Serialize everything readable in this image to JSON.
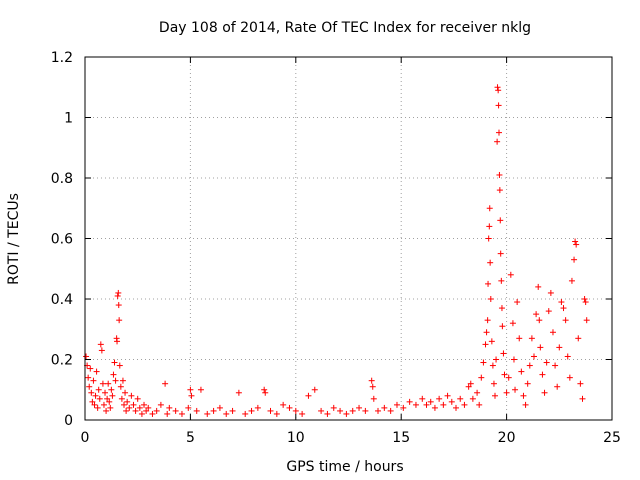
{
  "chart_data": {
    "type": "scatter",
    "title": "Day 108 of 2014, Rate Of TEC Index for receiver nklg",
    "xlabel": "GPS time / hours",
    "ylabel": "ROTI / TECUs",
    "xlim": [
      0,
      25
    ],
    "ylim": [
      0,
      1.2
    ],
    "xticks": [
      0,
      5,
      10,
      15,
      20,
      25
    ],
    "xtick_labels": [
      "0",
      "5",
      "10",
      "15",
      "20",
      "25"
    ],
    "yticks": [
      0,
      0.2,
      0.4,
      0.6,
      0.8,
      1.0,
      1.2
    ],
    "ytick_labels": [
      "0",
      "0.2",
      "0.4",
      "0.6",
      "0.8",
      "1",
      "1.2"
    ],
    "grid": true,
    "marker": "+",
    "color": "#ff0000",
    "series": [
      {
        "points": [
          [
            0.05,
            0.21
          ],
          [
            0.1,
            0.18
          ],
          [
            0.15,
            0.14
          ],
          [
            0.2,
            0.11
          ],
          [
            0.25,
            0.17
          ],
          [
            0.3,
            0.09
          ],
          [
            0.35,
            0.06
          ],
          [
            0.4,
            0.13
          ],
          [
            0.45,
            0.05
          ],
          [
            0.5,
            0.08
          ],
          [
            0.55,
            0.16
          ],
          [
            0.6,
            0.04
          ],
          [
            0.65,
            0.1
          ],
          [
            0.7,
            0.07
          ],
          [
            0.75,
            0.25
          ],
          [
            0.8,
            0.23
          ],
          [
            0.85,
            0.12
          ],
          [
            0.9,
            0.05
          ],
          [
            0.95,
            0.09
          ],
          [
            1.0,
            0.03
          ],
          [
            1.05,
            0.07
          ],
          [
            1.1,
            0.12
          ],
          [
            1.15,
            0.06
          ],
          [
            1.2,
            0.04
          ],
          [
            1.25,
            0.1
          ],
          [
            1.3,
            0.08
          ],
          [
            1.35,
            0.15
          ],
          [
            1.4,
            0.19
          ],
          [
            1.45,
            0.13
          ],
          [
            1.5,
            0.27
          ],
          [
            1.52,
            0.26
          ],
          [
            1.55,
            0.41
          ],
          [
            1.58,
            0.42
          ],
          [
            1.6,
            0.38
          ],
          [
            1.62,
            0.33
          ],
          [
            1.65,
            0.18
          ],
          [
            1.7,
            0.11
          ],
          [
            1.75,
            0.07
          ],
          [
            1.8,
            0.13
          ],
          [
            1.85,
            0.05
          ],
          [
            1.9,
            0.09
          ],
          [
            1.95,
            0.03
          ],
          [
            2.0,
            0.06
          ],
          [
            2.1,
            0.04
          ],
          [
            2.2,
            0.08
          ],
          [
            2.3,
            0.05
          ],
          [
            2.4,
            0.03
          ],
          [
            2.5,
            0.07
          ],
          [
            2.6,
            0.04
          ],
          [
            2.7,
            0.02
          ],
          [
            2.8,
            0.05
          ],
          [
            2.9,
            0.03
          ],
          [
            3.0,
            0.04
          ],
          [
            3.2,
            0.02
          ],
          [
            3.4,
            0.03
          ],
          [
            3.6,
            0.05
          ],
          [
            3.8,
            0.12
          ],
          [
            3.9,
            0.02
          ],
          [
            4.0,
            0.04
          ],
          [
            4.3,
            0.03
          ],
          [
            4.6,
            0.02
          ],
          [
            4.9,
            0.04
          ],
          [
            5.0,
            0.1
          ],
          [
            5.05,
            0.08
          ],
          [
            5.3,
            0.03
          ],
          [
            5.5,
            0.1
          ],
          [
            5.8,
            0.02
          ],
          [
            6.1,
            0.03
          ],
          [
            6.4,
            0.04
          ],
          [
            6.7,
            0.02
          ],
          [
            7.0,
            0.03
          ],
          [
            7.3,
            0.09
          ],
          [
            7.6,
            0.02
          ],
          [
            7.9,
            0.03
          ],
          [
            8.2,
            0.04
          ],
          [
            8.5,
            0.1
          ],
          [
            8.55,
            0.09
          ],
          [
            8.8,
            0.03
          ],
          [
            9.1,
            0.02
          ],
          [
            9.4,
            0.05
          ],
          [
            9.7,
            0.04
          ],
          [
            10.0,
            0.03
          ],
          [
            10.3,
            0.02
          ],
          [
            10.6,
            0.08
          ],
          [
            10.9,
            0.1
          ],
          [
            11.2,
            0.03
          ],
          [
            11.5,
            0.02
          ],
          [
            11.8,
            0.04
          ],
          [
            12.1,
            0.03
          ],
          [
            12.4,
            0.02
          ],
          [
            12.7,
            0.03
          ],
          [
            13.0,
            0.04
          ],
          [
            13.3,
            0.03
          ],
          [
            13.6,
            0.13
          ],
          [
            13.65,
            0.11
          ],
          [
            13.7,
            0.07
          ],
          [
            13.9,
            0.03
          ],
          [
            14.2,
            0.04
          ],
          [
            14.5,
            0.03
          ],
          [
            14.8,
            0.05
          ],
          [
            15.1,
            0.04
          ],
          [
            15.4,
            0.06
          ],
          [
            15.7,
            0.05
          ],
          [
            16.0,
            0.07
          ],
          [
            16.2,
            0.05
          ],
          [
            16.4,
            0.06
          ],
          [
            16.6,
            0.04
          ],
          [
            16.8,
            0.07
          ],
          [
            17.0,
            0.05
          ],
          [
            17.2,
            0.08
          ],
          [
            17.4,
            0.06
          ],
          [
            17.6,
            0.04
          ],
          [
            17.8,
            0.07
          ],
          [
            18.0,
            0.05
          ],
          [
            18.2,
            0.11
          ],
          [
            18.3,
            0.12
          ],
          [
            18.4,
            0.07
          ],
          [
            18.6,
            0.09
          ],
          [
            18.7,
            0.05
          ],
          [
            18.8,
            0.14
          ],
          [
            18.9,
            0.19
          ],
          [
            19.0,
            0.25
          ],
          [
            19.05,
            0.29
          ],
          [
            19.1,
            0.33
          ],
          [
            19.12,
            0.45
          ],
          [
            19.15,
            0.6
          ],
          [
            19.18,
            0.64
          ],
          [
            19.2,
            0.7
          ],
          [
            19.22,
            0.52
          ],
          [
            19.25,
            0.4
          ],
          [
            19.3,
            0.26
          ],
          [
            19.35,
            0.18
          ],
          [
            19.4,
            0.12
          ],
          [
            19.45,
            0.08
          ],
          [
            19.5,
            0.2
          ],
          [
            19.55,
            0.92
          ],
          [
            19.57,
            1.1
          ],
          [
            19.6,
            1.09
          ],
          [
            19.62,
            1.04
          ],
          [
            19.64,
            0.95
          ],
          [
            19.66,
            0.81
          ],
          [
            19.68,
            0.76
          ],
          [
            19.7,
            0.66
          ],
          [
            19.72,
            0.55
          ],
          [
            19.75,
            0.46
          ],
          [
            19.78,
            0.37
          ],
          [
            19.8,
            0.31
          ],
          [
            19.85,
            0.22
          ],
          [
            19.9,
            0.15
          ],
          [
            20.0,
            0.09
          ],
          [
            20.1,
            0.14
          ],
          [
            20.2,
            0.48
          ],
          [
            20.3,
            0.32
          ],
          [
            20.35,
            0.2
          ],
          [
            20.4,
            0.1
          ],
          [
            20.5,
            0.39
          ],
          [
            20.6,
            0.27
          ],
          [
            20.7,
            0.16
          ],
          [
            20.8,
            0.08
          ],
          [
            20.9,
            0.05
          ],
          [
            21.0,
            0.12
          ],
          [
            21.1,
            0.18
          ],
          [
            21.2,
            0.27
          ],
          [
            21.3,
            0.21
          ],
          [
            21.4,
            0.35
          ],
          [
            21.5,
            0.44
          ],
          [
            21.55,
            0.33
          ],
          [
            21.6,
            0.24
          ],
          [
            21.7,
            0.15
          ],
          [
            21.8,
            0.09
          ],
          [
            21.9,
            0.19
          ],
          [
            22.0,
            0.36
          ],
          [
            22.1,
            0.42
          ],
          [
            22.2,
            0.29
          ],
          [
            22.3,
            0.18
          ],
          [
            22.4,
            0.11
          ],
          [
            22.5,
            0.24
          ],
          [
            22.6,
            0.39
          ],
          [
            22.7,
            0.37
          ],
          [
            22.8,
            0.33
          ],
          [
            22.9,
            0.21
          ],
          [
            23.0,
            0.14
          ],
          [
            23.1,
            0.46
          ],
          [
            23.2,
            0.53
          ],
          [
            23.25,
            0.59
          ],
          [
            23.3,
            0.58
          ],
          [
            23.4,
            0.27
          ],
          [
            23.5,
            0.12
          ],
          [
            23.6,
            0.07
          ],
          [
            23.7,
            0.4
          ],
          [
            23.75,
            0.39
          ],
          [
            23.8,
            0.33
          ]
        ]
      }
    ]
  }
}
